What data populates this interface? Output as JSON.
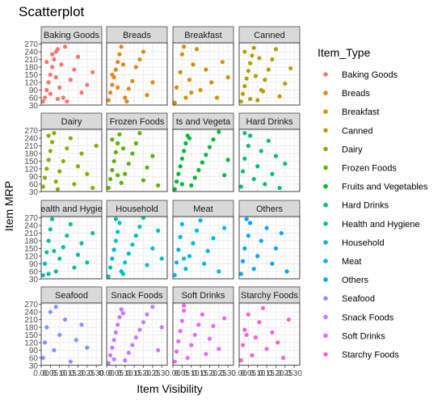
{
  "chart_data": {
    "type": "scatter",
    "title": "Scatterplot",
    "xlabel": "Item Visibility",
    "ylabel": "Item MRP",
    "legend_title": "Item_Type",
    "legend_position": "right",
    "facet_layout": {
      "rows": 4,
      "cols": 4,
      "strip_position": "top"
    },
    "xlim": [
      0,
      0.33
    ],
    "ylim": [
      31,
      275
    ],
    "x_ticks": [
      0.0,
      0.05,
      0.1,
      0.15,
      0.2,
      0.25,
      0.3
    ],
    "x_tick_labels": [
      "0.00",
      "0.05",
      "0.10",
      "0.15",
      "0.20",
      "0.25",
      "0.30"
    ],
    "y_ticks": [
      30,
      60,
      90,
      120,
      150,
      180,
      210,
      240,
      270
    ],
    "y_tick_labels": [
      "30",
      "60",
      "90",
      "120",
      "150",
      "180",
      "210",
      "240",
      "270"
    ],
    "grid": true,
    "panel_background": "#ffffff",
    "grid_color": "#ebebeb",
    "strip_fill": "#d9d9d9",
    "series": [
      {
        "name": "Baking Goods",
        "color": "#F8766D",
        "points": [
          [
            0.01,
            45
          ],
          [
            0.02,
            60
          ],
          [
            0.03,
            90
          ],
          [
            0.04,
            120
          ],
          [
            0.05,
            150
          ],
          [
            0.06,
            180
          ],
          [
            0.07,
            210
          ],
          [
            0.08,
            240
          ],
          [
            0.09,
            250
          ],
          [
            0.1,
            100
          ],
          [
            0.12,
            60
          ],
          [
            0.14,
            45
          ],
          [
            0.16,
            130
          ],
          [
            0.18,
            170
          ],
          [
            0.2,
            220
          ],
          [
            0.22,
            80
          ],
          [
            0.25,
            110
          ],
          [
            0.28,
            160
          ],
          [
            0.03,
            200
          ],
          [
            0.06,
            230
          ],
          [
            0.09,
            55
          ],
          [
            0.11,
            190
          ],
          [
            0.13,
            260
          ],
          [
            0.05,
            75
          ],
          [
            0.08,
            140
          ]
        ]
      },
      {
        "name": "Breads",
        "color": "#E7861B",
        "points": [
          [
            0.01,
            50
          ],
          [
            0.02,
            80
          ],
          [
            0.03,
            110
          ],
          [
            0.04,
            140
          ],
          [
            0.05,
            170
          ],
          [
            0.06,
            200
          ],
          [
            0.07,
            230
          ],
          [
            0.08,
            260
          ],
          [
            0.1,
            60
          ],
          [
            0.12,
            95
          ],
          [
            0.14,
            125
          ],
          [
            0.16,
            180
          ],
          [
            0.18,
            210
          ],
          [
            0.2,
            240
          ],
          [
            0.22,
            70
          ],
          [
            0.25,
            120
          ],
          [
            0.03,
            150
          ],
          [
            0.06,
            100
          ],
          [
            0.09,
            190
          ],
          [
            0.11,
            45
          ]
        ]
      },
      {
        "name": "Breakfast",
        "color": "#D39200",
        "points": [
          [
            0.01,
            40
          ],
          [
            0.02,
            100
          ],
          [
            0.04,
            160
          ],
          [
            0.05,
            230
          ],
          [
            0.07,
            60
          ],
          [
            0.09,
            130
          ],
          [
            0.11,
            190
          ],
          [
            0.13,
            250
          ],
          [
            0.15,
            90
          ],
          [
            0.18,
            170
          ],
          [
            0.21,
            120
          ],
          [
            0.24,
            60
          ],
          [
            0.27,
            200
          ],
          [
            0.3,
            140
          ],
          [
            0.06,
            260
          ],
          [
            0.1,
            80
          ]
        ]
      },
      {
        "name": "Canned",
        "color": "#B79F00",
        "points": [
          [
            0.01,
            45
          ],
          [
            0.02,
            75
          ],
          [
            0.03,
            105
          ],
          [
            0.04,
            135
          ],
          [
            0.05,
            165
          ],
          [
            0.06,
            195
          ],
          [
            0.07,
            225
          ],
          [
            0.08,
            255
          ],
          [
            0.1,
            50
          ],
          [
            0.12,
            90
          ],
          [
            0.14,
            130
          ],
          [
            0.16,
            170
          ],
          [
            0.18,
            210
          ],
          [
            0.2,
            250
          ],
          [
            0.22,
            65
          ],
          [
            0.25,
            115
          ],
          [
            0.28,
            175
          ],
          [
            0.03,
            240
          ],
          [
            0.06,
            55
          ],
          [
            0.09,
            145
          ],
          [
            0.11,
            215
          ],
          [
            0.13,
            85
          ]
        ]
      },
      {
        "name": "Dairy",
        "color": "#93AA00",
        "points": [
          [
            0.01,
            50
          ],
          [
            0.02,
            85
          ],
          [
            0.03,
            120
          ],
          [
            0.04,
            155
          ],
          [
            0.05,
            190
          ],
          [
            0.06,
            225
          ],
          [
            0.07,
            260
          ],
          [
            0.08,
            70
          ],
          [
            0.1,
            110
          ],
          [
            0.12,
            150
          ],
          [
            0.14,
            200
          ],
          [
            0.16,
            240
          ],
          [
            0.18,
            60
          ],
          [
            0.2,
            130
          ],
          [
            0.22,
            180
          ],
          [
            0.25,
            100
          ],
          [
            0.28,
            45
          ],
          [
            0.3,
            210
          ],
          [
            0.04,
            250
          ],
          [
            0.09,
            40
          ]
        ]
      },
      {
        "name": "Frozen Foods",
        "color": "#5EB300",
        "points": [
          [
            0.01,
            45
          ],
          [
            0.02,
            80
          ],
          [
            0.03,
            115
          ],
          [
            0.04,
            150
          ],
          [
            0.05,
            185
          ],
          [
            0.06,
            220
          ],
          [
            0.07,
            255
          ],
          [
            0.08,
            65
          ],
          [
            0.1,
            100
          ],
          [
            0.12,
            140
          ],
          [
            0.14,
            180
          ],
          [
            0.16,
            220
          ],
          [
            0.18,
            260
          ],
          [
            0.2,
            75
          ],
          [
            0.22,
            125
          ],
          [
            0.25,
            170
          ],
          [
            0.28,
            55
          ],
          [
            0.03,
            235
          ],
          [
            0.06,
            95
          ],
          [
            0.09,
            200
          ]
        ]
      },
      {
        "name": "Fruits and Vegetables",
        "color": "#00BA38",
        "points": [
          [
            0.01,
            40
          ],
          [
            0.02,
            70
          ],
          [
            0.03,
            100
          ],
          [
            0.04,
            130
          ],
          [
            0.05,
            160
          ],
          [
            0.06,
            190
          ],
          [
            0.07,
            220
          ],
          [
            0.08,
            250
          ],
          [
            0.1,
            55
          ],
          [
            0.12,
            85
          ],
          [
            0.14,
            115
          ],
          [
            0.16,
            145
          ],
          [
            0.18,
            175
          ],
          [
            0.2,
            205
          ],
          [
            0.22,
            235
          ],
          [
            0.25,
            265
          ],
          [
            0.28,
            95
          ],
          [
            0.3,
            155
          ],
          [
            0.05,
            60
          ],
          [
            0.09,
            240
          ]
        ]
      },
      {
        "name": "Hard Drinks",
        "color": "#00BF74",
        "points": [
          [
            0.01,
            50
          ],
          [
            0.02,
            110
          ],
          [
            0.03,
            160
          ],
          [
            0.05,
            210
          ],
          [
            0.06,
            250
          ],
          [
            0.08,
            80
          ],
          [
            0.1,
            130
          ],
          [
            0.12,
            190
          ],
          [
            0.14,
            60
          ],
          [
            0.16,
            230
          ],
          [
            0.18,
            100
          ],
          [
            0.2,
            170
          ],
          [
            0.22,
            45
          ],
          [
            0.25,
            140
          ],
          [
            0.03,
            260
          ]
        ]
      },
      {
        "name": "Health and Hygiene",
        "color": "#00C19F",
        "points": [
          [
            0.01,
            45
          ],
          [
            0.02,
            90
          ],
          [
            0.03,
            135
          ],
          [
            0.04,
            180
          ],
          [
            0.05,
            225
          ],
          [
            0.06,
            265
          ],
          [
            0.08,
            60
          ],
          [
            0.1,
            110
          ],
          [
            0.12,
            155
          ],
          [
            0.14,
            200
          ],
          [
            0.16,
            245
          ],
          [
            0.18,
            75
          ],
          [
            0.2,
            125
          ],
          [
            0.22,
            170
          ],
          [
            0.25,
            95
          ],
          [
            0.28,
            210
          ],
          [
            0.04,
            50
          ],
          [
            0.07,
            140
          ]
        ]
      },
      {
        "name": "Household",
        "color": "#00BFC4",
        "points": [
          [
            0.01,
            40
          ],
          [
            0.02,
            75
          ],
          [
            0.03,
            110
          ],
          [
            0.04,
            145
          ],
          [
            0.05,
            180
          ],
          [
            0.06,
            215
          ],
          [
            0.07,
            250
          ],
          [
            0.08,
            60
          ],
          [
            0.1,
            95
          ],
          [
            0.12,
            130
          ],
          [
            0.14,
            165
          ],
          [
            0.16,
            200
          ],
          [
            0.18,
            235
          ],
          [
            0.2,
            270
          ],
          [
            0.22,
            85
          ],
          [
            0.25,
            150
          ],
          [
            0.28,
            220
          ],
          [
            0.3,
            110
          ],
          [
            0.05,
            265
          ],
          [
            0.09,
            50
          ]
        ]
      },
      {
        "name": "Meat",
        "color": "#00B8E7",
        "points": [
          [
            0.01,
            45
          ],
          [
            0.02,
            95
          ],
          [
            0.03,
            145
          ],
          [
            0.04,
            195
          ],
          [
            0.05,
            245
          ],
          [
            0.07,
            70
          ],
          [
            0.09,
            120
          ],
          [
            0.11,
            170
          ],
          [
            0.13,
            220
          ],
          [
            0.15,
            260
          ],
          [
            0.17,
            90
          ],
          [
            0.19,
            140
          ],
          [
            0.22,
            190
          ],
          [
            0.25,
            60
          ],
          [
            0.28,
            230
          ],
          [
            0.06,
            110
          ]
        ]
      },
      {
        "name": "Others",
        "color": "#00A9FF",
        "points": [
          [
            0.01,
            50
          ],
          [
            0.02,
            100
          ],
          [
            0.03,
            150
          ],
          [
            0.05,
            200
          ],
          [
            0.06,
            250
          ],
          [
            0.08,
            70
          ],
          [
            0.1,
            120
          ],
          [
            0.12,
            180
          ],
          [
            0.15,
            230
          ],
          [
            0.18,
            90
          ],
          [
            0.2,
            150
          ],
          [
            0.23,
            210
          ],
          [
            0.26,
            60
          ],
          [
            0.04,
            265
          ]
        ]
      },
      {
        "name": "Seafood",
        "color": "#8494FF",
        "points": [
          [
            0.01,
            60
          ],
          [
            0.02,
            120
          ],
          [
            0.03,
            180
          ],
          [
            0.05,
            240
          ],
          [
            0.07,
            90
          ],
          [
            0.1,
            150
          ],
          [
            0.13,
            210
          ],
          [
            0.16,
            45
          ],
          [
            0.19,
            130
          ],
          [
            0.22,
            190
          ],
          [
            0.25,
            100
          ],
          [
            0.08,
            260
          ]
        ]
      },
      {
        "name": "Snack Foods",
        "color": "#C77CFF",
        "points": [
          [
            0.01,
            40
          ],
          [
            0.02,
            70
          ],
          [
            0.03,
            100
          ],
          [
            0.04,
            130
          ],
          [
            0.05,
            160
          ],
          [
            0.06,
            190
          ],
          [
            0.07,
            220
          ],
          [
            0.08,
            250
          ],
          [
            0.1,
            50
          ],
          [
            0.12,
            80
          ],
          [
            0.14,
            110
          ],
          [
            0.16,
            140
          ],
          [
            0.18,
            170
          ],
          [
            0.2,
            200
          ],
          [
            0.22,
            230
          ],
          [
            0.25,
            260
          ],
          [
            0.28,
            90
          ],
          [
            0.3,
            180
          ],
          [
            0.04,
            55
          ],
          [
            0.09,
            235
          ]
        ]
      },
      {
        "name": "Soft Drinks",
        "color": "#ED68ED",
        "points": [
          [
            0.01,
            45
          ],
          [
            0.02,
            85
          ],
          [
            0.03,
            125
          ],
          [
            0.04,
            165
          ],
          [
            0.05,
            205
          ],
          [
            0.06,
            245
          ],
          [
            0.08,
            60
          ],
          [
            0.1,
            110
          ],
          [
            0.12,
            150
          ],
          [
            0.14,
            190
          ],
          [
            0.16,
            230
          ],
          [
            0.18,
            75
          ],
          [
            0.2,
            135
          ],
          [
            0.22,
            185
          ],
          [
            0.25,
            95
          ],
          [
            0.28,
            215
          ],
          [
            0.06,
            265
          ]
        ]
      },
      {
        "name": "Starchy Foods",
        "color": "#FF61CC",
        "points": [
          [
            0.01,
            50
          ],
          [
            0.02,
            110
          ],
          [
            0.03,
            170
          ],
          [
            0.05,
            230
          ],
          [
            0.07,
            70
          ],
          [
            0.09,
            140
          ],
          [
            0.11,
            200
          ],
          [
            0.13,
            255
          ],
          [
            0.15,
            95
          ],
          [
            0.18,
            160
          ],
          [
            0.21,
            120
          ],
          [
            0.24,
            60
          ],
          [
            0.27,
            210
          ],
          [
            0.04,
            150
          ]
        ]
      }
    ]
  },
  "ui": {
    "facet_strip_labels": [
      "Baking Goods",
      "Breads",
      "Breakfast",
      "Canned",
      "Dairy",
      "Frozen Foods",
      "ts and Vegeta",
      "Hard Drinks",
      "ealth and Hygie",
      "Household",
      "Meat",
      "Others",
      "Seafood",
      "Snack Foods",
      "Soft Drinks",
      "Starchy Foods"
    ]
  }
}
